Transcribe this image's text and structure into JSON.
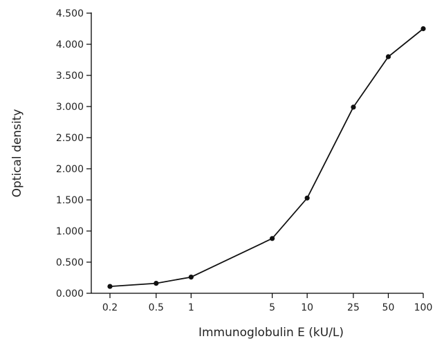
{
  "chart_data": {
    "type": "line",
    "title": "",
    "xlabel": "Immunoglobulin E (kU/L)",
    "ylabel": "Optical density",
    "x_scale": "log",
    "categories": [
      "0.2",
      "0.5",
      "1",
      "5",
      "10",
      "25",
      "50",
      "100"
    ],
    "x": [
      0.2,
      0.5,
      1,
      5,
      10,
      25,
      50,
      100
    ],
    "values": [
      0.11,
      0.16,
      0.26,
      0.88,
      1.53,
      2.99,
      3.8,
      4.25
    ],
    "ylim": [
      0,
      4.5
    ],
    "yticks": [
      "0.000",
      "0.500",
      "1.000",
      "1.500",
      "2.000",
      "2.500",
      "3.000",
      "3.500",
      "4.000",
      "4.500"
    ],
    "grid": false,
    "legend": "none",
    "colors": {
      "line": "#111111",
      "marker": "#111111"
    }
  }
}
